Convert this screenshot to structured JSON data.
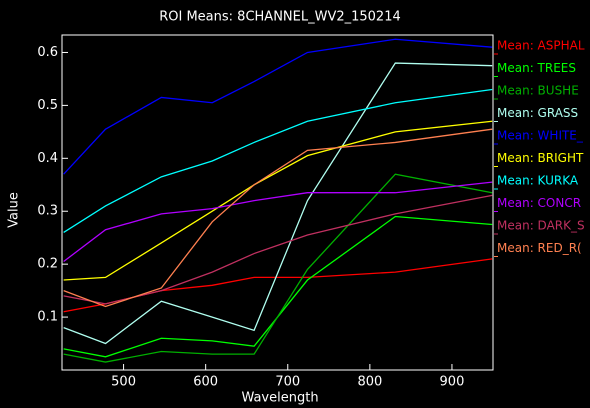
{
  "chart_data": {
    "type": "line",
    "title": "ROI Means: 8CHANNEL_WV2_150214",
    "xlabel": "Wavelength",
    "ylabel": "Value",
    "x": [
      427,
      478,
      546,
      608,
      659,
      724,
      831,
      949
    ],
    "xlim": [
      425,
      950
    ],
    "xticks": [
      500,
      600,
      700,
      800,
      900
    ],
    "ylim": [
      0,
      0.633
    ],
    "yticks": [
      0.1,
      0.2,
      0.3,
      0.4,
      0.5,
      0.6
    ],
    "series": [
      {
        "name": "Mean: ASPHAL",
        "color": "#ff0000",
        "values": [
          0.11,
          0.125,
          0.15,
          0.16,
          0.175,
          0.175,
          0.185,
          0.21
        ]
      },
      {
        "name": "Mean: TREES",
        "color": "#00ff00",
        "values": [
          0.04,
          0.025,
          0.06,
          0.055,
          0.045,
          0.17,
          0.29,
          0.275
        ]
      },
      {
        "name": "Mean: BUSHE",
        "color": "#00b000",
        "values": [
          0.03,
          0.015,
          0.035,
          0.03,
          0.03,
          0.19,
          0.37,
          0.335
        ]
      },
      {
        "name": "Mean: GRASS",
        "color": "#b0fff0",
        "values": [
          0.08,
          0.05,
          0.13,
          0.1,
          0.075,
          0.32,
          0.58,
          0.575
        ]
      },
      {
        "name": "Mean: WHITE_",
        "color": "#0000ff",
        "values": [
          0.37,
          0.455,
          0.515,
          0.505,
          0.545,
          0.6,
          0.625,
          0.61
        ]
      },
      {
        "name": "Mean: BRIGHT",
        "color": "#ffff00",
        "values": [
          0.17,
          0.175,
          0.24,
          0.3,
          0.35,
          0.405,
          0.45,
          0.47
        ]
      },
      {
        "name": "Mean: KURKA",
        "color": "#00ffff",
        "values": [
          0.26,
          0.31,
          0.365,
          0.395,
          0.43,
          0.47,
          0.505,
          0.53
        ]
      },
      {
        "name": "Mean: CONCR",
        "color": "#b000ff",
        "values": [
          0.205,
          0.265,
          0.295,
          0.305,
          0.32,
          0.335,
          0.335,
          0.355
        ]
      },
      {
        "name": "Mean: DARK_S",
        "color": "#c03060",
        "values": [
          0.14,
          0.125,
          0.15,
          0.185,
          0.22,
          0.255,
          0.295,
          0.33
        ]
      },
      {
        "name": "Mean: RED_R(",
        "color": "#ff8050",
        "values": [
          0.15,
          0.12,
          0.155,
          0.28,
          0.35,
          0.415,
          0.43,
          0.455
        ]
      }
    ]
  }
}
